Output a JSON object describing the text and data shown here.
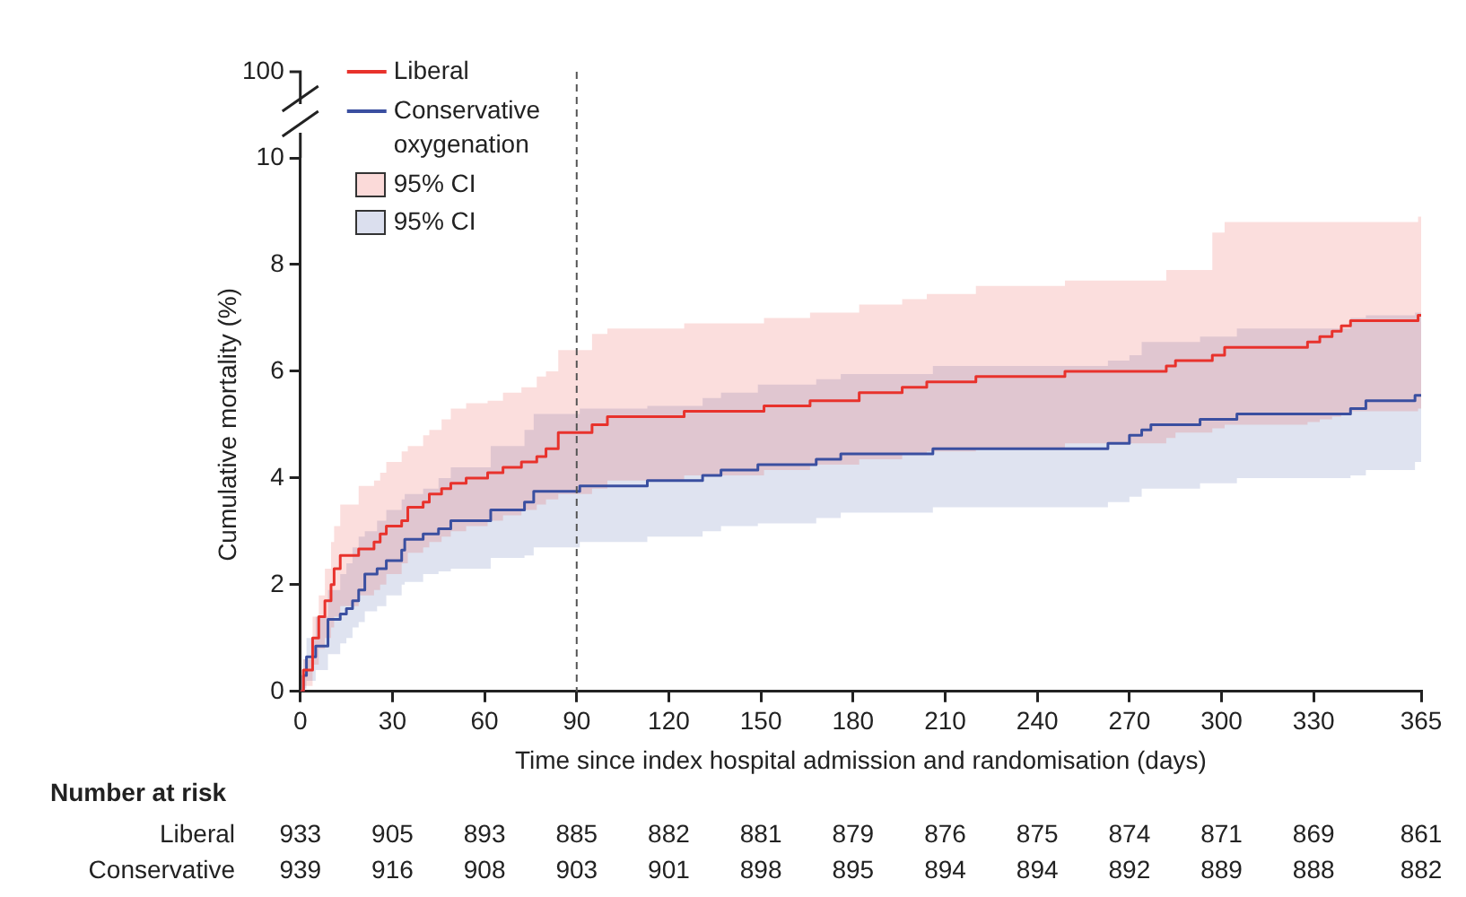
{
  "chart_data": {
    "type": "step",
    "xlabel": "Time since index hospital admission and randomisation (days)",
    "ylabel": "Cumulative mortality (%)",
    "xlim": [
      0,
      365
    ],
    "xticks": [
      0,
      30,
      60,
      90,
      120,
      150,
      180,
      210,
      240,
      270,
      300,
      330,
      365
    ],
    "ylim": [
      0,
      10
    ],
    "yticks": [
      0,
      2,
      4,
      6,
      8,
      10
    ],
    "grid": false,
    "legend": "top left",
    "marker": "none",
    "line_style": "solid",
    "ref_lines": [
      {
        "axis": "x",
        "value": 90,
        "line_style": "dashed",
        "color": "#555555"
      }
    ],
    "series": [
      {
        "name": "Liberal",
        "color": "#e8322c",
        "x": [
          0,
          1,
          4,
          6,
          8,
          10,
          11,
          13,
          19,
          24,
          26,
          28,
          33,
          35,
          40,
          42,
          46,
          49,
          54,
          61,
          66,
          72,
          77,
          80,
          84,
          95,
          100,
          125,
          151,
          166,
          182,
          196,
          204,
          220,
          249,
          282,
          285,
          297,
          301,
          328,
          332,
          336,
          339,
          342,
          364,
          365
        ],
        "values": [
          0,
          0.4,
          1.0,
          1.4,
          1.7,
          2.0,
          2.3,
          2.55,
          2.67,
          2.8,
          2.95,
          3.1,
          3.2,
          3.45,
          3.55,
          3.7,
          3.8,
          3.9,
          4.0,
          4.1,
          4.2,
          4.3,
          4.4,
          4.55,
          4.85,
          5.0,
          5.15,
          5.25,
          5.35,
          5.45,
          5.6,
          5.7,
          5.8,
          5.9,
          6.0,
          6.1,
          6.2,
          6.3,
          6.45,
          6.55,
          6.65,
          6.75,
          6.85,
          6.95,
          7.05,
          7.05
        ],
        "upper": [
          0,
          0.6,
          1.4,
          1.8,
          2.3,
          2.8,
          3.1,
          3.5,
          3.85,
          3.95,
          4.1,
          4.3,
          4.5,
          4.6,
          4.8,
          4.9,
          5.1,
          5.3,
          5.4,
          5.45,
          5.6,
          5.7,
          5.9,
          6.0,
          6.4,
          6.7,
          6.8,
          6.9,
          7.0,
          7.1,
          7.25,
          7.35,
          7.45,
          7.6,
          7.7,
          7.9,
          7.9,
          8.6,
          8.8,
          8.8,
          8.8,
          8.8,
          8.8,
          8.8,
          8.9,
          8.9
        ],
        "lower": [
          0,
          0.1,
          0.5,
          0.8,
          1.0,
          1.2,
          1.4,
          1.6,
          1.8,
          1.9,
          2.0,
          2.2,
          2.4,
          2.6,
          2.7,
          2.8,
          2.9,
          3.0,
          3.1,
          3.2,
          3.3,
          3.4,
          3.5,
          3.6,
          3.7,
          3.8,
          3.95,
          4.05,
          4.15,
          4.25,
          4.35,
          4.45,
          4.5,
          4.55,
          4.65,
          4.75,
          4.85,
          4.93,
          5.0,
          5.05,
          5.1,
          5.15,
          5.2,
          5.25,
          5.3,
          5.3
        ]
      },
      {
        "name": "Conservative oxygenation",
        "color": "#3a4fa0",
        "x": [
          0,
          1,
          2,
          5,
          9,
          13,
          15,
          17,
          19,
          21,
          25,
          28,
          33,
          34,
          40,
          45,
          49,
          62,
          73,
          76,
          91,
          113,
          131,
          137,
          149,
          168,
          176,
          206,
          263,
          270,
          274,
          277,
          293,
          305,
          342,
          347,
          363,
          365
        ],
        "values": [
          0,
          0.3,
          0.65,
          0.85,
          1.35,
          1.45,
          1.55,
          1.7,
          1.9,
          2.2,
          2.3,
          2.45,
          2.65,
          2.85,
          2.95,
          3.05,
          3.2,
          3.4,
          3.55,
          3.75,
          3.85,
          3.95,
          4.05,
          4.15,
          4.25,
          4.35,
          4.45,
          4.55,
          4.65,
          4.8,
          4.9,
          5.0,
          5.1,
          5.2,
          5.3,
          5.45,
          5.55,
          5.55
        ],
        "upper": [
          0,
          0.6,
          1.0,
          1.4,
          1.9,
          2.2,
          2.4,
          2.7,
          2.9,
          3.0,
          3.2,
          3.4,
          3.6,
          3.7,
          3.8,
          4.0,
          4.2,
          4.6,
          4.9,
          5.2,
          5.3,
          5.35,
          5.5,
          5.6,
          5.75,
          5.85,
          5.95,
          6.1,
          6.2,
          6.3,
          6.55,
          6.55,
          6.65,
          6.8,
          7.0,
          7.05,
          7.1,
          7.2
        ],
        "lower": [
          0,
          0.05,
          0.2,
          0.4,
          0.7,
          0.9,
          1.0,
          1.2,
          1.3,
          1.5,
          1.6,
          1.8,
          2.0,
          2.05,
          2.2,
          2.25,
          2.3,
          2.5,
          2.55,
          2.7,
          2.8,
          2.9,
          3.0,
          3.1,
          3.15,
          3.25,
          3.35,
          3.45,
          3.55,
          3.65,
          3.8,
          3.8,
          3.9,
          4.0,
          4.05,
          4.15,
          4.3,
          4.3
        ]
      }
    ],
    "annotations": [
      "95% CI",
      "95% CI",
      "100",
      "Number at risk",
      "Liberal",
      "933",
      "905",
      "893",
      "885",
      "882",
      "881",
      "879",
      "876",
      "875",
      "874",
      "871",
      "869",
      "861",
      "Conservative",
      "939",
      "916",
      "908",
      "903",
      "901",
      "898",
      "895",
      "894",
      "894",
      "892",
      "889",
      "888",
      "882"
    ]
  }
}
